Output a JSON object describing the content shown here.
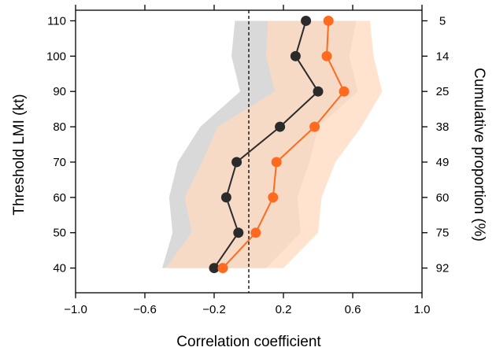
{
  "chart_data": {
    "type": "line",
    "xlabel": "Correlation coefficient",
    "ylabel": "Threshold LMI (kt)",
    "y2label": "Cumulative proportion (%)",
    "xlim": [
      -1.0,
      1.0
    ],
    "ylim": [
      33,
      113
    ],
    "x_ticks": [
      "−1.0",
      "−0.6",
      "−0.2",
      "0.2",
      "0.6",
      "1.0"
    ],
    "x_tick_values": [
      -1.0,
      -0.6,
      -0.2,
      0.2,
      0.6,
      1.0
    ],
    "y_ticks": [
      40,
      50,
      60,
      70,
      80,
      90,
      100,
      110
    ],
    "y2_ticks": [
      "92",
      "75",
      "60",
      "49",
      "38",
      "25",
      "14",
      "5"
    ],
    "reference_line_x": 0,
    "series": [
      {
        "color": "#2b2b2b",
        "band_color": "#d9d9d9",
        "points": [
          {
            "y": 40,
            "x": -0.2
          },
          {
            "y": 50,
            "x": -0.06
          },
          {
            "y": 60,
            "x": -0.13
          },
          {
            "y": 70,
            "x": -0.07
          },
          {
            "y": 80,
            "x": 0.18
          },
          {
            "y": 90,
            "x": 0.4
          },
          {
            "y": 100,
            "x": 0.27
          },
          {
            "y": 110,
            "x": 0.33
          }
        ],
        "band_lower": [
          -0.5,
          -0.44,
          -0.46,
          -0.41,
          -0.28,
          -0.05,
          -0.1,
          -0.08
        ],
        "band_upper": [
          0.1,
          0.3,
          0.28,
          0.35,
          0.4,
          0.63,
          0.58,
          0.62
        ]
      },
      {
        "color": "#ff6a1f",
        "band_color": "#ffd9bf",
        "points": [
          {
            "y": 40,
            "x": -0.15
          },
          {
            "y": 50,
            "x": 0.04
          },
          {
            "y": 60,
            "x": 0.14
          },
          {
            "y": 70,
            "x": 0.16
          },
          {
            "y": 80,
            "x": 0.38
          },
          {
            "y": 90,
            "x": 0.55
          },
          {
            "y": 100,
            "x": 0.45
          },
          {
            "y": 110,
            "x": 0.46
          }
        ],
        "band_lower": [
          -0.48,
          -0.33,
          -0.37,
          -0.27,
          -0.18,
          0.15,
          0.1,
          0.11
        ],
        "band_upper": [
          0.2,
          0.4,
          0.42,
          0.5,
          0.65,
          0.77,
          0.72,
          0.7
        ]
      }
    ]
  }
}
